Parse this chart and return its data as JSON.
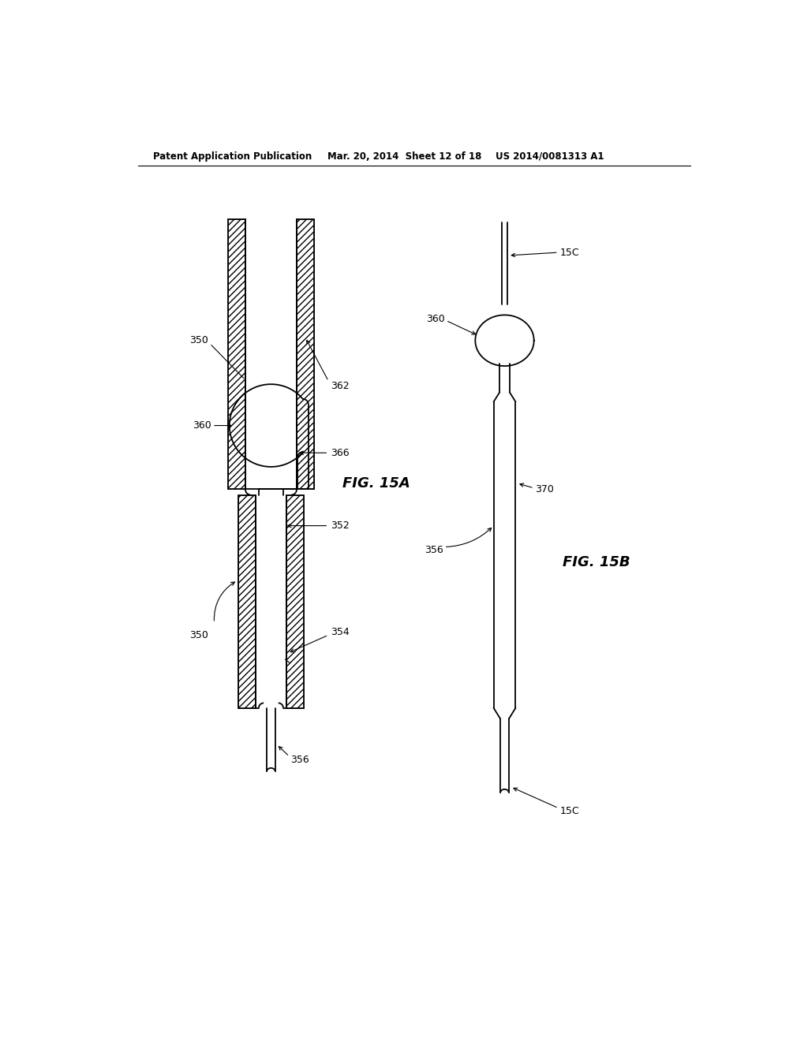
{
  "bg_color": "#ffffff",
  "header_text1": "Patent Application Publication",
  "header_text2": "Mar. 20, 2014  Sheet 12 of 18",
  "header_text3": "US 2014/0081313 A1",
  "fig15a_label": "FIG. 15A",
  "fig15b_label": "FIG. 15B",
  "label_362": "362",
  "label_350a": "350",
  "label_350b": "350",
  "label_360a": "360",
  "label_366": "366",
  "label_352": "352",
  "label_354": "354",
  "label_356a": "356",
  "label_360b": "360",
  "label_356b": "356",
  "label_370": "370",
  "label_15C_top": "15C",
  "label_15C_bot": "15C"
}
